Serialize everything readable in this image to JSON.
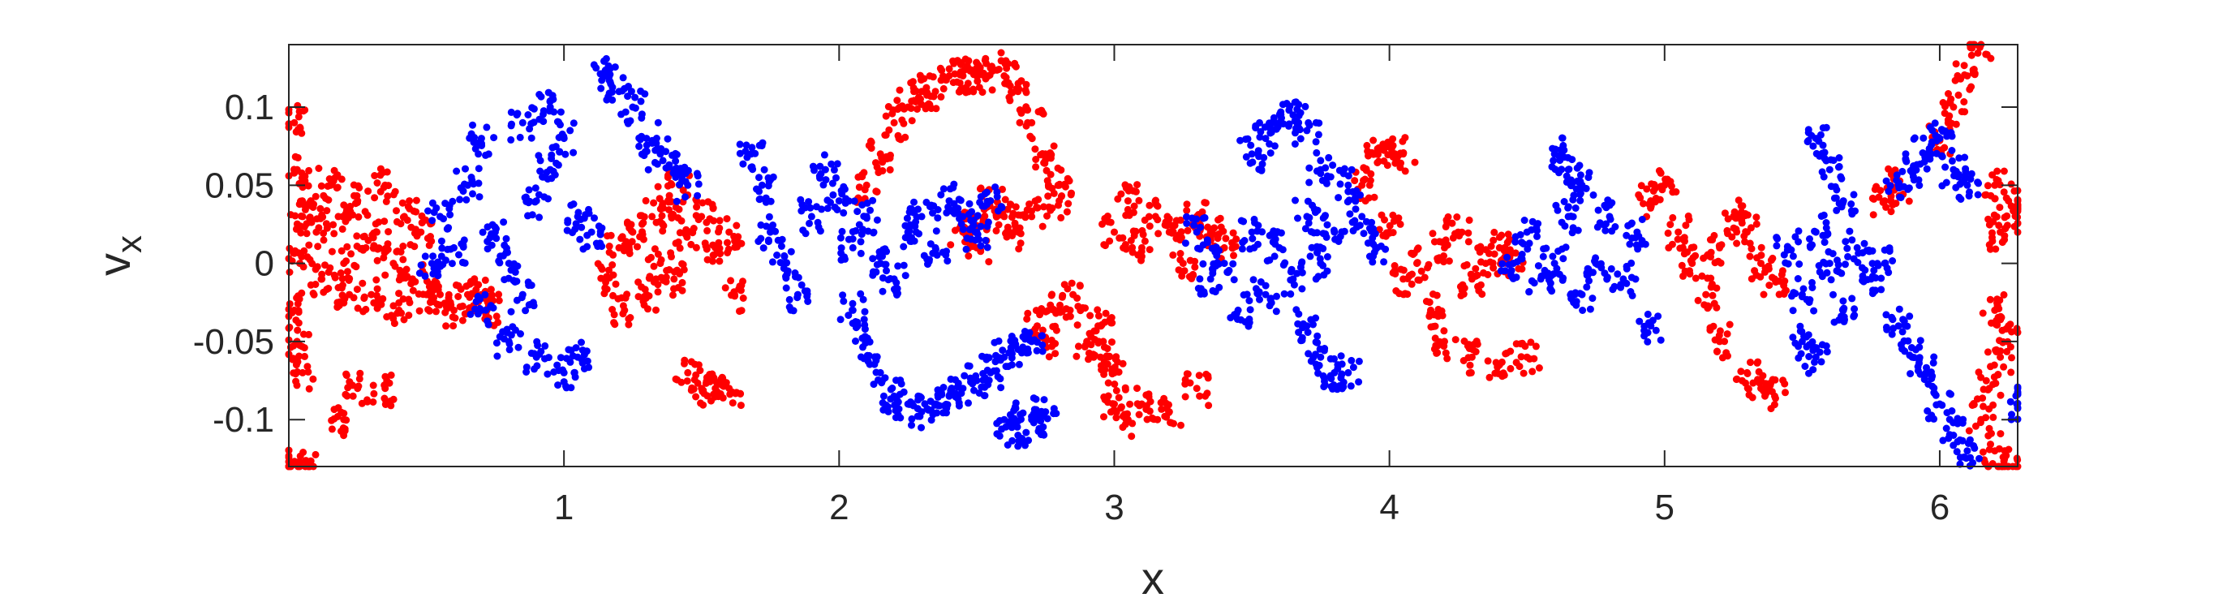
{
  "chart_data": {
    "type": "scatter",
    "title": "",
    "xlabel": "x",
    "ylabel": {
      "base": "v",
      "subscript": "x"
    },
    "xlim": [
      0,
      6.2832
    ],
    "ylim": [
      -0.13,
      0.14
    ],
    "xticks": [
      1,
      2,
      3,
      4,
      5,
      6
    ],
    "xtick_labels": [
      "1",
      "2",
      "3",
      "4",
      "5",
      "6"
    ],
    "yticks": [
      0.1,
      0.05,
      0,
      -0.05,
      -0.1
    ],
    "ytick_labels": [
      "0.1",
      "0.05",
      "0",
      "-0.05",
      "-0.1"
    ],
    "grid": false,
    "legend": "none",
    "series": [
      {
        "color": "#ff0000",
        "points": [
          [
            0.02,
            0.09
          ],
          [
            0.03,
            0.06
          ],
          [
            0.05,
            0.03
          ],
          [
            0.04,
            0.0
          ],
          [
            0.02,
            -0.03
          ],
          [
            0.03,
            -0.05
          ],
          [
            0.05,
            -0.07
          ],
          [
            0.08,
            0.04
          ],
          [
            0.1,
            0.02
          ],
          [
            0.12,
            -0.01
          ],
          [
            0.15,
            0.05
          ],
          [
            0.18,
            0.03
          ],
          [
            0.2,
            0.0
          ],
          [
            0.22,
            -0.02
          ],
          [
            0.25,
            0.04
          ],
          [
            0.28,
            0.01
          ],
          [
            0.3,
            -0.02
          ],
          [
            0.32,
            0.02
          ],
          [
            0.35,
            0.05
          ],
          [
            0.38,
            0.0
          ],
          [
            0.4,
            -0.03
          ],
          [
            0.42,
            0.03
          ],
          [
            0.45,
            -0.01
          ],
          [
            0.48,
            0.02
          ],
          [
            0.5,
            -0.02
          ],
          [
            0.2,
            -0.1
          ],
          [
            0.25,
            -0.08
          ],
          [
            0.35,
            -0.08
          ],
          [
            0.55,
            -0.02
          ],
          [
            0.6,
            -0.03
          ],
          [
            0.65,
            -0.02
          ],
          [
            0.7,
            -0.02
          ],
          [
            0.72,
            -0.03
          ],
          [
            0.0,
            -0.13
          ],
          [
            0.06,
            -0.13
          ],
          [
            1.15,
            -0.01
          ],
          [
            1.2,
            0.01
          ],
          [
            1.22,
            -0.03
          ],
          [
            1.25,
            0.02
          ],
          [
            1.3,
            -0.02
          ],
          [
            1.32,
            0.03
          ],
          [
            1.35,
            0.0
          ],
          [
            1.38,
            0.04
          ],
          [
            1.4,
            -0.01
          ],
          [
            1.42,
            0.05
          ],
          [
            1.45,
            0.02
          ],
          [
            1.5,
            0.03
          ],
          [
            1.55,
            0.01
          ],
          [
            1.6,
            0.02
          ],
          [
            1.62,
            -0.02
          ],
          [
            1.45,
            -0.07
          ],
          [
            1.5,
            -0.08
          ],
          [
            1.55,
            -0.08
          ],
          [
            1.6,
            -0.08
          ],
          [
            2.1,
            0.05
          ],
          [
            2.15,
            0.07
          ],
          [
            2.2,
            0.09
          ],
          [
            2.25,
            0.1
          ],
          [
            2.3,
            0.11
          ],
          [
            2.35,
            0.11
          ],
          [
            2.4,
            0.12
          ],
          [
            2.45,
            0.12
          ],
          [
            2.5,
            0.12
          ],
          [
            2.55,
            0.125
          ],
          [
            2.6,
            0.12
          ],
          [
            2.65,
            0.11
          ],
          [
            2.7,
            0.09
          ],
          [
            2.75,
            0.07
          ],
          [
            2.8,
            0.05
          ],
          [
            2.5,
            0.01
          ],
          [
            2.45,
            0.02
          ],
          [
            2.5,
            0.03
          ],
          [
            2.55,
            0.04
          ],
          [
            2.6,
            0.03
          ],
          [
            2.65,
            0.02
          ],
          [
            2.7,
            0.03
          ],
          [
            2.8,
            0.04
          ],
          [
            2.72,
            -0.04
          ],
          [
            2.75,
            -0.05
          ],
          [
            2.8,
            -0.03
          ],
          [
            2.85,
            -0.02
          ],
          [
            2.9,
            -0.05
          ],
          [
            2.95,
            -0.04
          ],
          [
            3.0,
            0.02
          ],
          [
            3.05,
            0.04
          ],
          [
            3.1,
            0.01
          ],
          [
            3.15,
            0.03
          ],
          [
            3.2,
            0.02
          ],
          [
            3.25,
            0.0
          ],
          [
            3.3,
            0.03
          ],
          [
            3.35,
            0.02
          ],
          [
            3.4,
            0.01
          ],
          [
            3.0,
            -0.09
          ],
          [
            3.05,
            -0.1
          ],
          [
            3.1,
            -0.09
          ],
          [
            3.2,
            -0.095
          ],
          [
            3.3,
            -0.08
          ],
          [
            2.95,
            -0.06
          ],
          [
            3.0,
            -0.07
          ],
          [
            3.9,
            0.05
          ],
          [
            3.95,
            0.07
          ],
          [
            4.0,
            0.075
          ],
          [
            4.05,
            0.07
          ],
          [
            4.0,
            0.02
          ],
          [
            4.05,
            -0.01
          ],
          [
            4.1,
            0.0
          ],
          [
            4.15,
            -0.03
          ],
          [
            4.2,
            0.01
          ],
          [
            4.25,
            0.02
          ],
          [
            4.3,
            -0.01
          ],
          [
            4.35,
            0.0
          ],
          [
            4.4,
            0.01
          ],
          [
            4.45,
            0.0
          ],
          [
            4.2,
            -0.05
          ],
          [
            4.3,
            -0.06
          ],
          [
            4.4,
            -0.065
          ],
          [
            4.5,
            -0.06
          ],
          [
            4.95,
            0.04
          ],
          [
            5.0,
            0.05
          ],
          [
            5.05,
            0.02
          ],
          [
            5.1,
            0.0
          ],
          [
            5.15,
            -0.02
          ],
          [
            5.2,
            0.01
          ],
          [
            5.25,
            0.03
          ],
          [
            5.3,
            0.02
          ],
          [
            5.35,
            0.0
          ],
          [
            5.4,
            -0.01
          ],
          [
            5.2,
            -0.05
          ],
          [
            5.3,
            -0.07
          ],
          [
            5.35,
            -0.08
          ],
          [
            5.4,
            -0.085
          ],
          [
            5.8,
            0.04
          ],
          [
            5.85,
            0.05
          ],
          [
            6.0,
            0.08
          ],
          [
            6.05,
            0.1
          ],
          [
            6.1,
            0.12
          ],
          [
            6.15,
            0.14
          ],
          [
            6.2,
            0.05
          ],
          [
            6.22,
            0.02
          ],
          [
            6.25,
            0.04
          ],
          [
            6.28,
            0.03
          ],
          [
            6.2,
            -0.03
          ],
          [
            6.22,
            -0.06
          ],
          [
            6.25,
            -0.04
          ],
          [
            6.18,
            -0.08
          ],
          [
            6.15,
            -0.1
          ],
          [
            6.2,
            -0.12
          ],
          [
            6.25,
            -0.13
          ]
        ]
      },
      {
        "color": "#0000ff",
        "points": [
          [
            0.52,
            0.0
          ],
          [
            0.55,
            0.03
          ],
          [
            0.6,
            0.01
          ],
          [
            0.65,
            0.05
          ],
          [
            0.7,
            0.08
          ],
          [
            0.75,
            0.02
          ],
          [
            0.8,
            0.0
          ],
          [
            0.85,
            -0.02
          ],
          [
            0.9,
            0.04
          ],
          [
            0.95,
            0.06
          ],
          [
            1.0,
            0.08
          ],
          [
            1.05,
            0.03
          ],
          [
            0.7,
            -0.03
          ],
          [
            0.8,
            -0.05
          ],
          [
            0.9,
            -0.06
          ],
          [
            1.0,
            -0.07
          ],
          [
            1.05,
            -0.06
          ],
          [
            1.1,
            0.02
          ],
          [
            0.85,
            0.09
          ],
          [
            0.95,
            0.1
          ],
          [
            1.15,
            0.12
          ],
          [
            1.2,
            0.11
          ],
          [
            1.25,
            0.1
          ],
          [
            1.3,
            0.08
          ],
          [
            1.35,
            0.07
          ],
          [
            1.4,
            0.06
          ],
          [
            1.45,
            0.05
          ],
          [
            1.68,
            0.07
          ],
          [
            1.72,
            0.05
          ],
          [
            1.75,
            0.02
          ],
          [
            1.8,
            0.0
          ],
          [
            1.85,
            -0.02
          ],
          [
            1.9,
            0.03
          ],
          [
            1.95,
            0.06
          ],
          [
            2.0,
            0.04
          ],
          [
            2.05,
            0.01
          ],
          [
            2.1,
            0.03
          ],
          [
            2.15,
            0.0
          ],
          [
            2.2,
            -0.01
          ],
          [
            2.25,
            0.02
          ],
          [
            2.3,
            0.03
          ],
          [
            2.35,
            0.01
          ],
          [
            2.4,
            0.04
          ],
          [
            2.45,
            0.03
          ],
          [
            2.5,
            0.02
          ],
          [
            2.55,
            0.04
          ],
          [
            2.05,
            -0.03
          ],
          [
            2.1,
            -0.05
          ],
          [
            2.15,
            -0.07
          ],
          [
            2.2,
            -0.085
          ],
          [
            2.25,
            -0.09
          ],
          [
            2.3,
            -0.095
          ],
          [
            2.35,
            -0.09
          ],
          [
            2.4,
            -0.085
          ],
          [
            2.45,
            -0.08
          ],
          [
            2.5,
            -0.075
          ],
          [
            2.55,
            -0.07
          ],
          [
            2.6,
            -0.06
          ],
          [
            2.65,
            -0.055
          ],
          [
            2.7,
            -0.05
          ],
          [
            2.6,
            -0.1
          ],
          [
            2.65,
            -0.11
          ],
          [
            2.7,
            -0.1
          ],
          [
            2.75,
            -0.095
          ],
          [
            3.3,
            0.02
          ],
          [
            3.35,
            -0.01
          ],
          [
            3.4,
            0.0
          ],
          [
            3.45,
            -0.03
          ],
          [
            3.5,
            0.02
          ],
          [
            3.55,
            -0.02
          ],
          [
            3.6,
            0.01
          ],
          [
            3.65,
            -0.01
          ],
          [
            3.7,
            0.03
          ],
          [
            3.75,
            0.0
          ],
          [
            3.8,
            0.02
          ],
          [
            3.85,
            0.05
          ],
          [
            3.9,
            0.03
          ],
          [
            3.95,
            0.01
          ],
          [
            3.5,
            0.07
          ],
          [
            3.55,
            0.08
          ],
          [
            3.6,
            0.09
          ],
          [
            3.65,
            0.095
          ],
          [
            3.7,
            0.085
          ],
          [
            3.75,
            0.06
          ],
          [
            3.7,
            -0.04
          ],
          [
            3.75,
            -0.06
          ],
          [
            3.8,
            -0.07
          ],
          [
            3.85,
            -0.07
          ],
          [
            4.45,
            0.0
          ],
          [
            4.5,
            0.02
          ],
          [
            4.55,
            -0.01
          ],
          [
            4.6,
            0.0
          ],
          [
            4.65,
            0.03
          ],
          [
            4.7,
            -0.02
          ],
          [
            4.75,
            0.0
          ],
          [
            4.8,
            0.03
          ],
          [
            4.85,
            -0.01
          ],
          [
            4.9,
            0.02
          ],
          [
            4.95,
            -0.04
          ],
          [
            4.6,
            0.07
          ],
          [
            4.65,
            0.06
          ],
          [
            4.7,
            0.05
          ],
          [
            5.45,
            0.01
          ],
          [
            5.5,
            -0.02
          ],
          [
            5.55,
            0.02
          ],
          [
            5.6,
            0.0
          ],
          [
            5.65,
            -0.03
          ],
          [
            5.7,
            0.01
          ],
          [
            5.75,
            -0.01
          ],
          [
            5.8,
            0.0
          ],
          [
            5.55,
            0.08
          ],
          [
            5.6,
            0.06
          ],
          [
            5.65,
            0.04
          ],
          [
            5.5,
            -0.05
          ],
          [
            5.55,
            -0.06
          ],
          [
            5.85,
            0.05
          ],
          [
            5.9,
            0.06
          ],
          [
            5.95,
            0.07
          ],
          [
            6.0,
            0.08
          ],
          [
            6.05,
            0.06
          ],
          [
            6.1,
            0.05
          ],
          [
            5.85,
            -0.04
          ],
          [
            5.9,
            -0.06
          ],
          [
            5.95,
            -0.07
          ],
          [
            6.0,
            -0.09
          ],
          [
            6.05,
            -0.11
          ],
          [
            6.1,
            -0.12
          ],
          [
            6.28,
            -0.09
          ]
        ]
      }
    ]
  }
}
